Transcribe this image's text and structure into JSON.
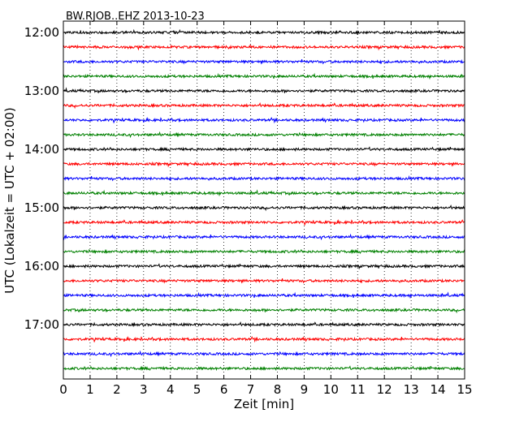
{
  "chart_data": {
    "type": "line",
    "title": "BW.RJOB..EHZ 2013-10-23",
    "xlabel": "Zeit  [min]",
    "ylabel": "UTC (Lokalzeit = UTC + 02:00)",
    "xlim": [
      0,
      15
    ],
    "x_ticks": [
      0,
      1,
      2,
      3,
      4,
      5,
      6,
      7,
      8,
      9,
      10,
      11,
      12,
      13,
      14,
      15
    ],
    "x_tick_labels": [
      "0",
      "1",
      "2",
      "3",
      "4",
      "5",
      "6",
      "7",
      "8",
      "9",
      "10",
      "11",
      "12",
      "13",
      "14",
      "15"
    ],
    "y_ticks": [
      "12:00",
      "13:00",
      "14:00",
      "15:00",
      "16:00",
      "17:00"
    ],
    "grid": {
      "vertical": true,
      "style": "dotted"
    },
    "trace_colors": [
      "#000000",
      "#ff0000",
      "#0000ff",
      "#008000"
    ],
    "traces": [
      {
        "start": "12:00",
        "color": "#000000"
      },
      {
        "start": "12:15",
        "color": "#ff0000"
      },
      {
        "start": "12:30",
        "color": "#0000ff"
      },
      {
        "start": "12:45",
        "color": "#008000"
      },
      {
        "start": "13:00",
        "color": "#000000"
      },
      {
        "start": "13:15",
        "color": "#ff0000"
      },
      {
        "start": "13:30",
        "color": "#0000ff"
      },
      {
        "start": "13:45",
        "color": "#008000"
      },
      {
        "start": "14:00",
        "color": "#000000"
      },
      {
        "start": "14:15",
        "color": "#ff0000"
      },
      {
        "start": "14:30",
        "color": "#0000ff"
      },
      {
        "start": "14:45",
        "color": "#008000"
      },
      {
        "start": "15:00",
        "color": "#000000"
      },
      {
        "start": "15:15",
        "color": "#ff0000"
      },
      {
        "start": "15:30",
        "color": "#0000ff"
      },
      {
        "start": "15:45",
        "color": "#008000"
      },
      {
        "start": "16:00",
        "color": "#000000"
      },
      {
        "start": "16:15",
        "color": "#ff0000"
      },
      {
        "start": "16:30",
        "color": "#0000ff"
      },
      {
        "start": "16:45",
        "color": "#008000"
      },
      {
        "start": "17:00",
        "color": "#000000"
      },
      {
        "start": "17:15",
        "color": "#ff0000"
      },
      {
        "start": "17:30",
        "color": "#0000ff"
      },
      {
        "start": "17:45",
        "color": "#008000"
      }
    ]
  }
}
